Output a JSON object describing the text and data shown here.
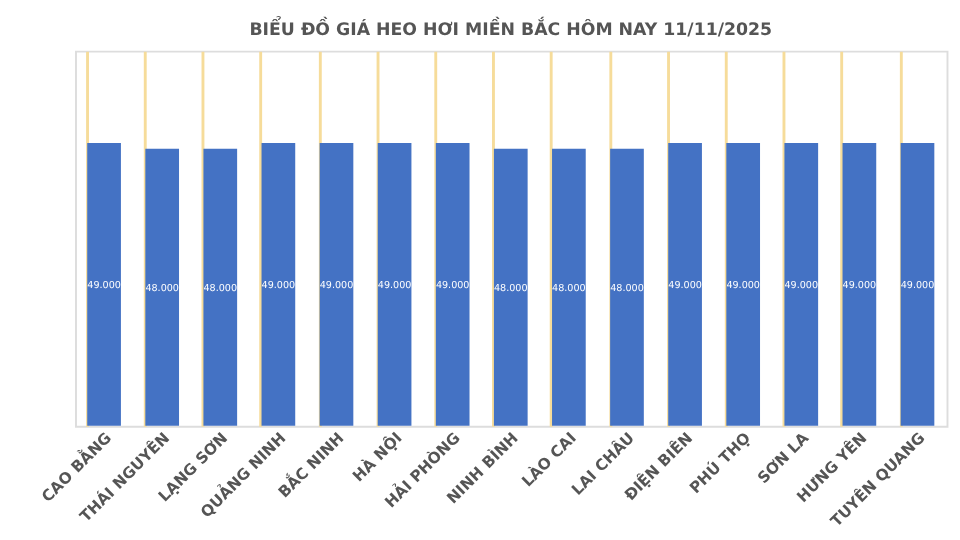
{
  "chart_data": {
    "type": "bar",
    "title": "BIỂU ĐỒ GIÁ HEO HƠI MIỀN BẮC HÔM NAY 11/11/2025",
    "categories": [
      "CAO BẰNG",
      "THÁI NGUYÊN",
      "LẠNG SƠN",
      "QUẢNG NINH",
      "BẮC NINH",
      "HÀ NỘI",
      "HẢI PHÒNG",
      "NINH BÌNH",
      "LÀO CAI",
      "LAI CHÂU",
      "ĐIỆN BIÊN",
      "PHÚ THỌ",
      "SƠN LA",
      "HƯNG YÊN",
      "TUYÊN QUANG"
    ],
    "values": [
      49000,
      48000,
      48000,
      49000,
      49000,
      49000,
      49000,
      48000,
      48000,
      48000,
      49000,
      49000,
      49000,
      49000,
      49000
    ],
    "value_labels": [
      "49.000",
      "48.000",
      "48.000",
      "49.000",
      "49.000",
      "49.000",
      "49.000",
      "48.000",
      "48.000",
      "48.000",
      "49.000",
      "49.000",
      "49.000",
      "49.000",
      "49.000"
    ],
    "color": "#4472c4",
    "ylim": [
      0,
      65000
    ],
    "tick_labels": "x",
    "grid": "x"
  }
}
